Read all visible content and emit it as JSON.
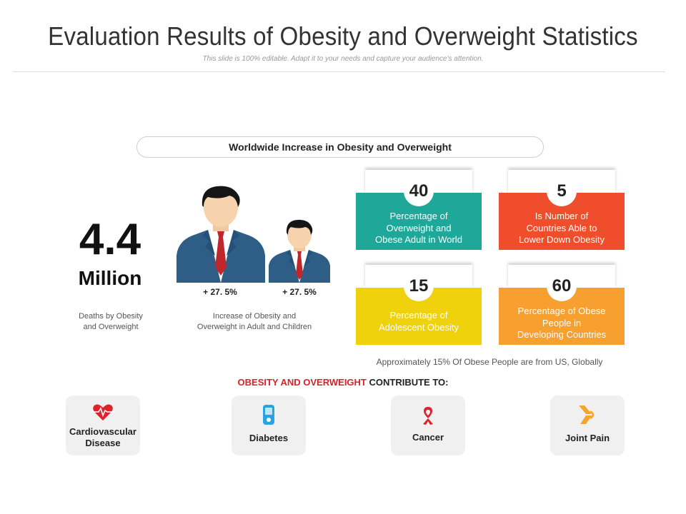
{
  "header": {
    "title": "Evaluation Results of Obesity and Overweight Statistics",
    "subtitle": "This slide is 100% editable. Adapt it to your needs and capture your audience's attention."
  },
  "section_title": "Worldwide Increase in Obesity and Overweight",
  "deaths": {
    "value": "4.4",
    "unit": "Million",
    "caption_line1": "Deaths by Obesity",
    "caption_line2": "and Overweight"
  },
  "increase": {
    "adult_percent": "+ 27. 5%",
    "child_percent": "+ 27. 5%",
    "caption_line1": "Increase of Obesity and",
    "caption_line2": "Overweight in Adult and Children"
  },
  "cards": [
    {
      "number": "40",
      "line1": "Percentage of",
      "line2": "Overweight and",
      "line3": "Obese Adult in World",
      "color": "#1fa79a"
    },
    {
      "number": "5",
      "line1": "Is Number of",
      "line2": "Countries Able to",
      "line3": "Lower Down Obesity",
      "color": "#f04d2d"
    },
    {
      "number": "15",
      "line1": "Percentage of",
      "line2": "Adolescent Obesity",
      "line3": "",
      "color": "#efd20c"
    },
    {
      "number": "60",
      "line1": "Percentage of Obese",
      "line2": "People in",
      "line3": "Developing Countries",
      "color": "#f7a030"
    }
  ],
  "footnote": "Approximately 15% Of Obese People are from US, Globally",
  "contribute": {
    "highlight": "OBESITY AND OVERWEIGHT",
    "rest": " CONTRIBUTE TO:"
  },
  "conditions": [
    {
      "line1": "Cardiovascular",
      "line2": "Disease",
      "icon": "heart-pulse-icon",
      "color": "#e0202a"
    },
    {
      "line1": "Diabetes",
      "line2": "",
      "icon": "glucose-meter-icon",
      "color": "#2aa4e0"
    },
    {
      "line1": "Cancer",
      "line2": "",
      "icon": "cancer-ribbon-icon",
      "color": "#e0202a"
    },
    {
      "line1": "Joint Pain",
      "line2": "",
      "icon": "joint-icon",
      "color": "#f4a52a"
    }
  ]
}
